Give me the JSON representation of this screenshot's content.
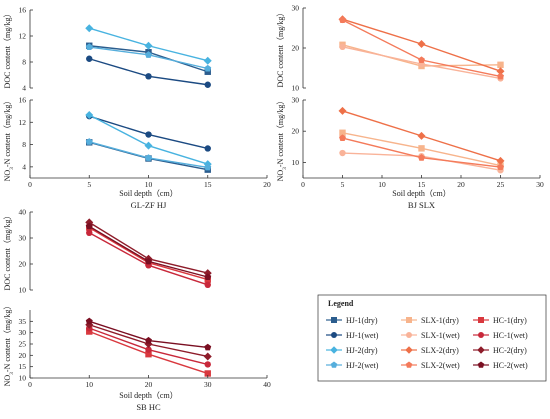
{
  "chart_data": [
    {
      "type": "line",
      "title": "GL-ZF HJ",
      "xlabel": "Soil depth（cm）",
      "x_ticks": [
        0,
        5,
        10,
        15,
        20
      ],
      "xlim": [
        0,
        20
      ],
      "panels": [
        {
          "ylabel": "DOC content（mg/kg）",
          "ylim": [
            4,
            16
          ],
          "y_ticks": [
            4,
            8,
            12,
            16
          ],
          "series": [
            {
              "name": "HJ-1(dry)",
              "x": [
                5,
                10,
                15
              ],
              "values": [
                10.5,
                9.5,
                6.5
              ]
            },
            {
              "name": "HJ-1(wet)",
              "x": [
                5,
                10,
                15
              ],
              "values": [
                8.5,
                5.8,
                4.5
              ]
            },
            {
              "name": "HJ-2(dry)",
              "x": [
                5,
                10,
                15
              ],
              "values": [
                13.2,
                10.5,
                8.2
              ]
            },
            {
              "name": "HJ-2(wet)",
              "x": [
                5,
                10,
                15
              ],
              "values": [
                10.3,
                9.1,
                7.0
              ]
            }
          ]
        },
        {
          "ylabel": "NO3-N content（mg/kg）",
          "ylim": [
            2,
            16
          ],
          "y_ticks": [
            4,
            8,
            12,
            16
          ],
          "series": [
            {
              "name": "HJ-1(dry)",
              "x": [
                5,
                10,
                15
              ],
              "values": [
                8.4,
                5.5,
                3.5
              ]
            },
            {
              "name": "HJ-1(wet)",
              "x": [
                5,
                10,
                15
              ],
              "values": [
                13.1,
                9.8,
                7.3
              ]
            },
            {
              "name": "HJ-2(dry)",
              "x": [
                5,
                10,
                15
              ],
              "values": [
                13.3,
                7.8,
                4.5
              ]
            },
            {
              "name": "HJ-2(wet)",
              "x": [
                5,
                10,
                15
              ],
              "values": [
                8.5,
                5.6,
                3.9
              ]
            }
          ]
        }
      ]
    },
    {
      "type": "line",
      "title": "BJ SLX",
      "xlabel": "Soil depth（cm）",
      "x_ticks": [
        0,
        5,
        10,
        15,
        20,
        25,
        30
      ],
      "xlim": [
        0,
        30
      ],
      "panels": [
        {
          "ylabel": "DOC content（mg/kg）",
          "ylim": [
            10,
            30
          ],
          "y_ticks": [
            10,
            20,
            30
          ],
          "series": [
            {
              "name": "SLX-1(dry)",
              "x": [
                5,
                15,
                25
              ],
              "values": [
                20.8,
                15.5,
                15.8
              ]
            },
            {
              "name": "SLX-1(wet)",
              "x": [
                5,
                15,
                25
              ],
              "values": [
                20.3,
                16.0,
                12.4
              ]
            },
            {
              "name": "SLX-2(dry)",
              "x": [
                5,
                15,
                25
              ],
              "values": [
                27.2,
                21.0,
                14.2
              ]
            },
            {
              "name": "SLX-2(wet)",
              "x": [
                5,
                15,
                25
              ],
              "values": [
                27.0,
                17.0,
                12.9
              ]
            }
          ]
        },
        {
          "ylabel": "NO3-N content（mg/kg）",
          "ylim": [
            5,
            30
          ],
          "y_ticks": [
            10,
            20,
            30
          ],
          "series": [
            {
              "name": "SLX-1(dry)",
              "x": [
                5,
                15,
                25
              ],
              "values": [
                19.5,
                14.5,
                9.0
              ]
            },
            {
              "name": "SLX-1(wet)",
              "x": [
                5,
                15,
                25
              ],
              "values": [
                13.0,
                12.0,
                7.5
              ]
            },
            {
              "name": "SLX-2(dry)",
              "x": [
                5,
                15,
                25
              ],
              "values": [
                26.5,
                18.5,
                10.5
              ]
            },
            {
              "name": "SLX-2(wet)",
              "x": [
                5,
                15,
                25
              ],
              "values": [
                17.8,
                11.5,
                8.5
              ]
            }
          ]
        }
      ]
    },
    {
      "type": "line",
      "title": "SB HC",
      "xlabel": "Soil depth（cm）",
      "x_ticks": [
        0,
        10,
        20,
        30,
        40
      ],
      "xlim": [
        0,
        40
      ],
      "panels": [
        {
          "ylabel": "DOC content（mg/kg）",
          "ylim": [
            10,
            40
          ],
          "y_ticks": [
            10,
            20,
            30,
            40
          ],
          "series": [
            {
              "name": "HC-1(dry)",
              "x": [
                10,
                20,
                30
              ],
              "values": [
                34.0,
                20.5,
                14.0
              ]
            },
            {
              "name": "HC-1(wet)",
              "x": [
                10,
                20,
                30
              ],
              "values": [
                32.0,
                19.5,
                12.0
              ]
            },
            {
              "name": "HC-2(dry)",
              "x": [
                10,
                20,
                30
              ],
              "values": [
                36.0,
                22.0,
                16.5
              ]
            },
            {
              "name": "HC-2(wet)",
              "x": [
                10,
                20,
                30
              ],
              "values": [
                34.5,
                21.0,
                15.0
              ]
            }
          ]
        },
        {
          "ylabel": "NO3-N content（mg/kg）",
          "ylim": [
            10,
            40
          ],
          "y_ticks": [
            10,
            15,
            20,
            25,
            30,
            35
          ],
          "series": [
            {
              "name": "HC-1(dry)",
              "x": [
                10,
                20,
                30
              ],
              "values": [
                30.5,
                20.5,
                12.0
              ]
            },
            {
              "name": "HC-1(wet)",
              "x": [
                10,
                20,
                30
              ],
              "values": [
                32.0,
                22.5,
                16.0
              ]
            },
            {
              "name": "HC-2(dry)",
              "x": [
                10,
                20,
                30
              ],
              "values": [
                33.5,
                25.0,
                19.5
              ]
            },
            {
              "name": "HC-2(wet)",
              "x": [
                10,
                20,
                30
              ],
              "values": [
                35.0,
                26.5,
                23.5
              ]
            }
          ]
        }
      ]
    }
  ],
  "legend": {
    "title": "Legend",
    "entries": [
      {
        "label": "HJ-1(dry)",
        "color": "#2b5d8e",
        "marker": "square"
      },
      {
        "label": "SLX-1(dry)",
        "color": "#f7b48c",
        "marker": "square"
      },
      {
        "label": "HC-1(dry)",
        "color": "#d9383e",
        "marker": "square"
      },
      {
        "label": "HJ-1(wet)",
        "color": "#1b4a82",
        "marker": "circle"
      },
      {
        "label": "SLX-1(wet)",
        "color": "#f9b399",
        "marker": "circle"
      },
      {
        "label": "HC-1(wet)",
        "color": "#c8283a",
        "marker": "circle"
      },
      {
        "label": "HJ-2(dry)",
        "color": "#48b3e0",
        "marker": "diamond"
      },
      {
        "label": "SLX-2(dry)",
        "color": "#ee7048",
        "marker": "diamond"
      },
      {
        "label": "HC-2(dry)",
        "color": "#8e1c2a",
        "marker": "diamond"
      },
      {
        "label": "HJ-2(wet)",
        "color": "#55aedc",
        "marker": "pentagon"
      },
      {
        "label": "SLX-2(wet)",
        "color": "#f47a5a",
        "marker": "pentagon"
      },
      {
        "label": "HC-2(wet)",
        "color": "#7a0f22",
        "marker": "pentagon"
      }
    ]
  },
  "series_style": {
    "HJ-1(dry)": {
      "color": "#2b5d8e",
      "marker": "square"
    },
    "HJ-1(wet)": {
      "color": "#1b4a82",
      "marker": "circle"
    },
    "HJ-2(dry)": {
      "color": "#48b3e0",
      "marker": "diamond"
    },
    "HJ-2(wet)": {
      "color": "#55aedc",
      "marker": "pentagon"
    },
    "SLX-1(dry)": {
      "color": "#f7b48c",
      "marker": "square"
    },
    "SLX-1(wet)": {
      "color": "#f9b399",
      "marker": "circle"
    },
    "SLX-2(dry)": {
      "color": "#ee7048",
      "marker": "diamond"
    },
    "SLX-2(wet)": {
      "color": "#f47a5a",
      "marker": "pentagon"
    },
    "HC-1(dry)": {
      "color": "#d9383e",
      "marker": "square"
    },
    "HC-1(wet)": {
      "color": "#c8283a",
      "marker": "circle"
    },
    "HC-2(dry)": {
      "color": "#8e1c2a",
      "marker": "diamond"
    },
    "HC-2(wet)": {
      "color": "#7a0f22",
      "marker": "pentagon"
    }
  }
}
